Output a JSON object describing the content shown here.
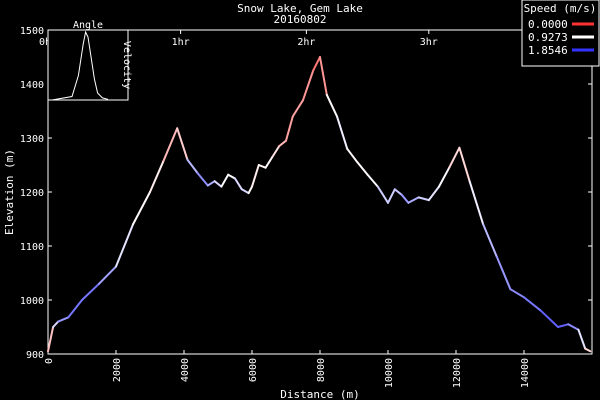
{
  "chart_data": {
    "type": "line",
    "title": "Snow Lake, Gem Lake",
    "subtitle": "20160802",
    "xlabel": "Distance (m)",
    "ylabel": "Elevation (m)",
    "xlim": [
      0,
      16000
    ],
    "ylim": [
      900,
      1500
    ],
    "xticks": [
      0,
      2000,
      4000,
      6000,
      8000,
      10000,
      12000,
      14000
    ],
    "yticks": [
      900,
      1000,
      1100,
      1200,
      1300,
      1400,
      1500
    ],
    "time_ticks": [
      {
        "label": "0hr",
        "x": 0
      },
      {
        "label": "1hr",
        "x": 3900
      },
      {
        "label": "2hr",
        "x": 7600
      },
      {
        "label": "3hr",
        "x": 11200
      }
    ],
    "legend": {
      "title": "Speed (m/s)",
      "placement": "top-right",
      "entries": [
        {
          "label": "0.0000",
          "color": "#ff3333"
        },
        {
          "label": "0.9273",
          "color": "#ffffff"
        },
        {
          "label": "1.8546",
          "color": "#3333ff"
        }
      ]
    },
    "inset": {
      "title": "Angle",
      "ylabel": "Velocity",
      "placement": "top-left",
      "curve": [
        [
          0.05,
          0
        ],
        [
          0.3,
          0.05
        ],
        [
          0.38,
          0.35
        ],
        [
          0.44,
          0.8
        ],
        [
          0.47,
          0.97
        ],
        [
          0.5,
          0.9
        ],
        [
          0.54,
          0.6
        ],
        [
          0.58,
          0.3
        ],
        [
          0.62,
          0.1
        ],
        [
          0.68,
          0.03
        ],
        [
          0.75,
          0.01
        ]
      ]
    },
    "series": [
      {
        "x": [
          0,
          150,
          300,
          600,
          1000,
          1500,
          2000,
          2500,
          3000,
          3400,
          3800,
          4100,
          4400,
          4700,
          4900,
          5100,
          5300,
          5500,
          5700,
          5900,
          6000,
          6200,
          6400,
          6600,
          6800,
          7000,
          7200,
          7500,
          7800,
          8000,
          8200,
          8500,
          8800,
          9100,
          9400,
          9700,
          10000,
          10200,
          10400,
          10600,
          10900,
          11200,
          11500,
          11800,
          12100,
          12400,
          12800,
          13200,
          13600,
          14000,
          14500,
          15000,
          15300,
          15600,
          15800,
          15950
        ],
        "y": [
          905,
          950,
          960,
          968,
          1000,
          1030,
          1062,
          1140,
          1200,
          1258,
          1318,
          1260,
          1235,
          1212,
          1220,
          1210,
          1232,
          1225,
          1205,
          1198,
          1210,
          1250,
          1245,
          1265,
          1285,
          1295,
          1340,
          1370,
          1425,
          1450,
          1380,
          1340,
          1280,
          1255,
          1232,
          1210,
          1180,
          1205,
          1195,
          1180,
          1190,
          1185,
          1210,
          1245,
          1282,
          1220,
          1140,
          1080,
          1020,
          1005,
          980,
          950,
          955,
          945,
          910,
          905
        ],
        "speed": [
          0.4,
          0.9,
          1.3,
          1.5,
          1.6,
          1.5,
          1.2,
          0.9,
          0.9,
          0.8,
          0.4,
          1.0,
          1.5,
          1.4,
          1.2,
          1.0,
          0.9,
          1.0,
          1.2,
          1.0,
          0.8,
          0.9,
          0.9,
          0.9,
          0.7,
          0.5,
          0.5,
          0.5,
          0.4,
          0.2,
          0.7,
          1.1,
          0.9,
          0.9,
          0.9,
          1.0,
          1.3,
          1.0,
          1.4,
          1.4,
          1.2,
          1.1,
          1.0,
          0.9,
          0.6,
          0.9,
          1.1,
          1.4,
          1.4,
          1.5,
          1.6,
          1.7,
          1.6,
          1.3,
          0.8,
          0.7
        ]
      }
    ]
  }
}
